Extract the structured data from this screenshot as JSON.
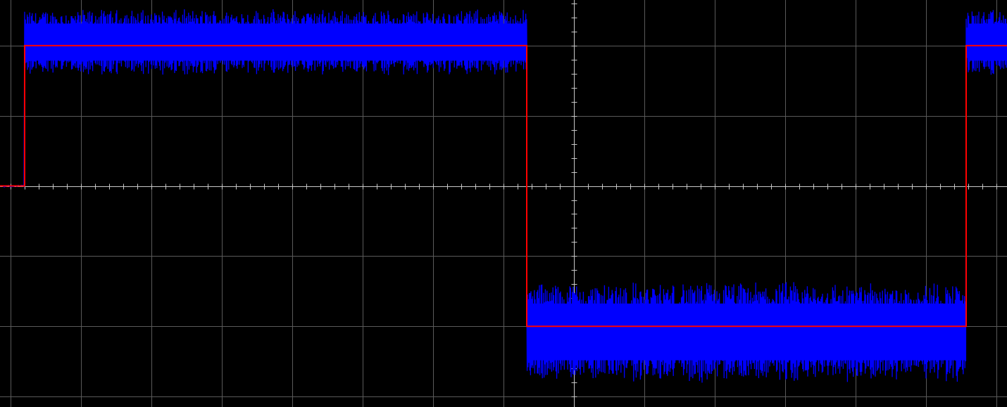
{
  "chart_data": {
    "type": "line",
    "title": "",
    "xlabel": "",
    "ylabel": "",
    "grid": true,
    "x_divisions": 14.3,
    "y_divisions": 5.8,
    "xlim": [
      -8.15,
      6.15
    ],
    "ylim": [
      -3.15,
      2.65
    ],
    "colors": {
      "background": "#000000",
      "grid": "#5a5a5a",
      "axis": "#c8c8c8",
      "ideal_signal": "#ff0000",
      "measured_signal": "#0000ff"
    },
    "series": [
      {
        "key": "ideal",
        "color": "#ff0000",
        "points": [
          [
            -8.15,
            0.0
          ],
          [
            -7.8,
            0.0
          ],
          [
            -7.8,
            2.0
          ],
          [
            -0.67,
            2.0
          ],
          [
            -0.67,
            -2.0
          ],
          [
            5.57,
            -2.0
          ],
          [
            5.57,
            2.0
          ],
          [
            6.15,
            2.0
          ]
        ]
      },
      {
        "key": "measured",
        "color": "#0000ff",
        "baseline_until_x": -7.8,
        "segments": [
          {
            "x_start": -7.8,
            "x_end": -0.67,
            "center": 2.05,
            "ripple_min": 1.52,
            "ripple_max": 2.48
          },
          {
            "x_start": -0.67,
            "x_end": 5.57,
            "center": -2.08,
            "ripple_min": -2.85,
            "ripple_max": -1.38
          },
          {
            "x_start": 5.57,
            "x_end": 6.15,
            "center": 2.05,
            "ripple_min": 1.52,
            "ripple_max": 2.48
          }
        ]
      }
    ]
  }
}
